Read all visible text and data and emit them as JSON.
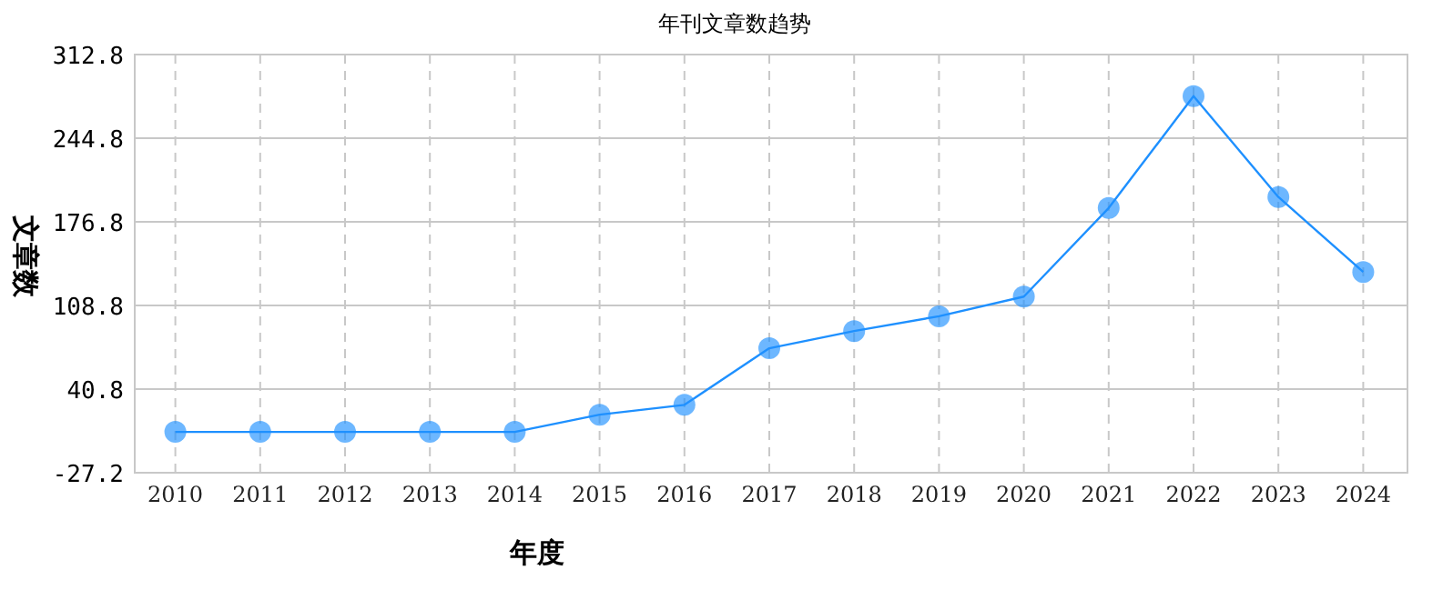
{
  "chart_data": {
    "type": "line",
    "title": "年刊文章数趋势",
    "xlabel": "年度",
    "ylabel": "文章数",
    "categories": [
      "2010",
      "2011",
      "2012",
      "2013",
      "2014",
      "2015",
      "2016",
      "2017",
      "2018",
      "2019",
      "2020",
      "2021",
      "2022",
      "2023",
      "2024"
    ],
    "series": [
      {
        "color": "#1e90ff",
        "values": [
          6,
          6,
          6,
          6,
          6,
          20,
          28,
          74,
          88,
          100,
          116,
          188,
          279,
          197,
          136
        ]
      }
    ],
    "ylim": [
      -27.2,
      312.8
    ],
    "yticks": [
      -27.2,
      40.8,
      108.8,
      176.8,
      244.8,
      312.8
    ],
    "grid": true,
    "marker": "circle",
    "line_style": "solid"
  }
}
